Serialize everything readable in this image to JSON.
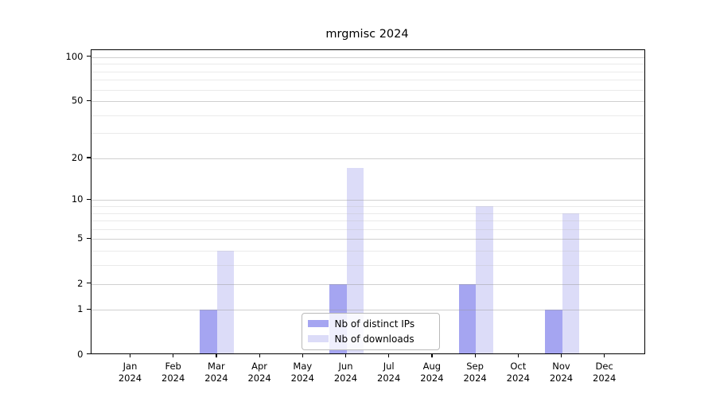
{
  "title": "mrgmisc 2024",
  "chart_data": {
    "type": "bar",
    "categories": [
      "Jan",
      "Feb",
      "Mar",
      "Apr",
      "May",
      "Jun",
      "Jul",
      "Aug",
      "Sep",
      "Oct",
      "Nov",
      "Dec"
    ],
    "year_label": "2024",
    "series": [
      {
        "name": "Nb of distinct IPs",
        "color": "#a5a5f1",
        "values": [
          0,
          0,
          1,
          0,
          0,
          2,
          0,
          0,
          2,
          0,
          1,
          0
        ]
      },
      {
        "name": "Nb of downloads",
        "color": "#dcdcf8",
        "values": [
          0,
          0,
          4,
          0,
          0,
          17,
          0,
          0,
          9,
          0,
          8,
          0
        ]
      }
    ],
    "yticks": [
      0,
      1,
      2,
      5,
      10,
      20,
      50,
      100
    ],
    "minor_gridlines": [
      3,
      4,
      6,
      7,
      8,
      9,
      30,
      40,
      60,
      70,
      80,
      90
    ],
    "scale": "log10(1+y)",
    "ylim": [
      0,
      112
    ],
    "grid": "on",
    "legend_position": "lower-center",
    "colors": {
      "grid_major": "rgba(150,150,150,0.45)",
      "grid_minor": "rgba(190,190,190,0.32)",
      "spine": "#000000",
      "text": "#000000"
    }
  }
}
